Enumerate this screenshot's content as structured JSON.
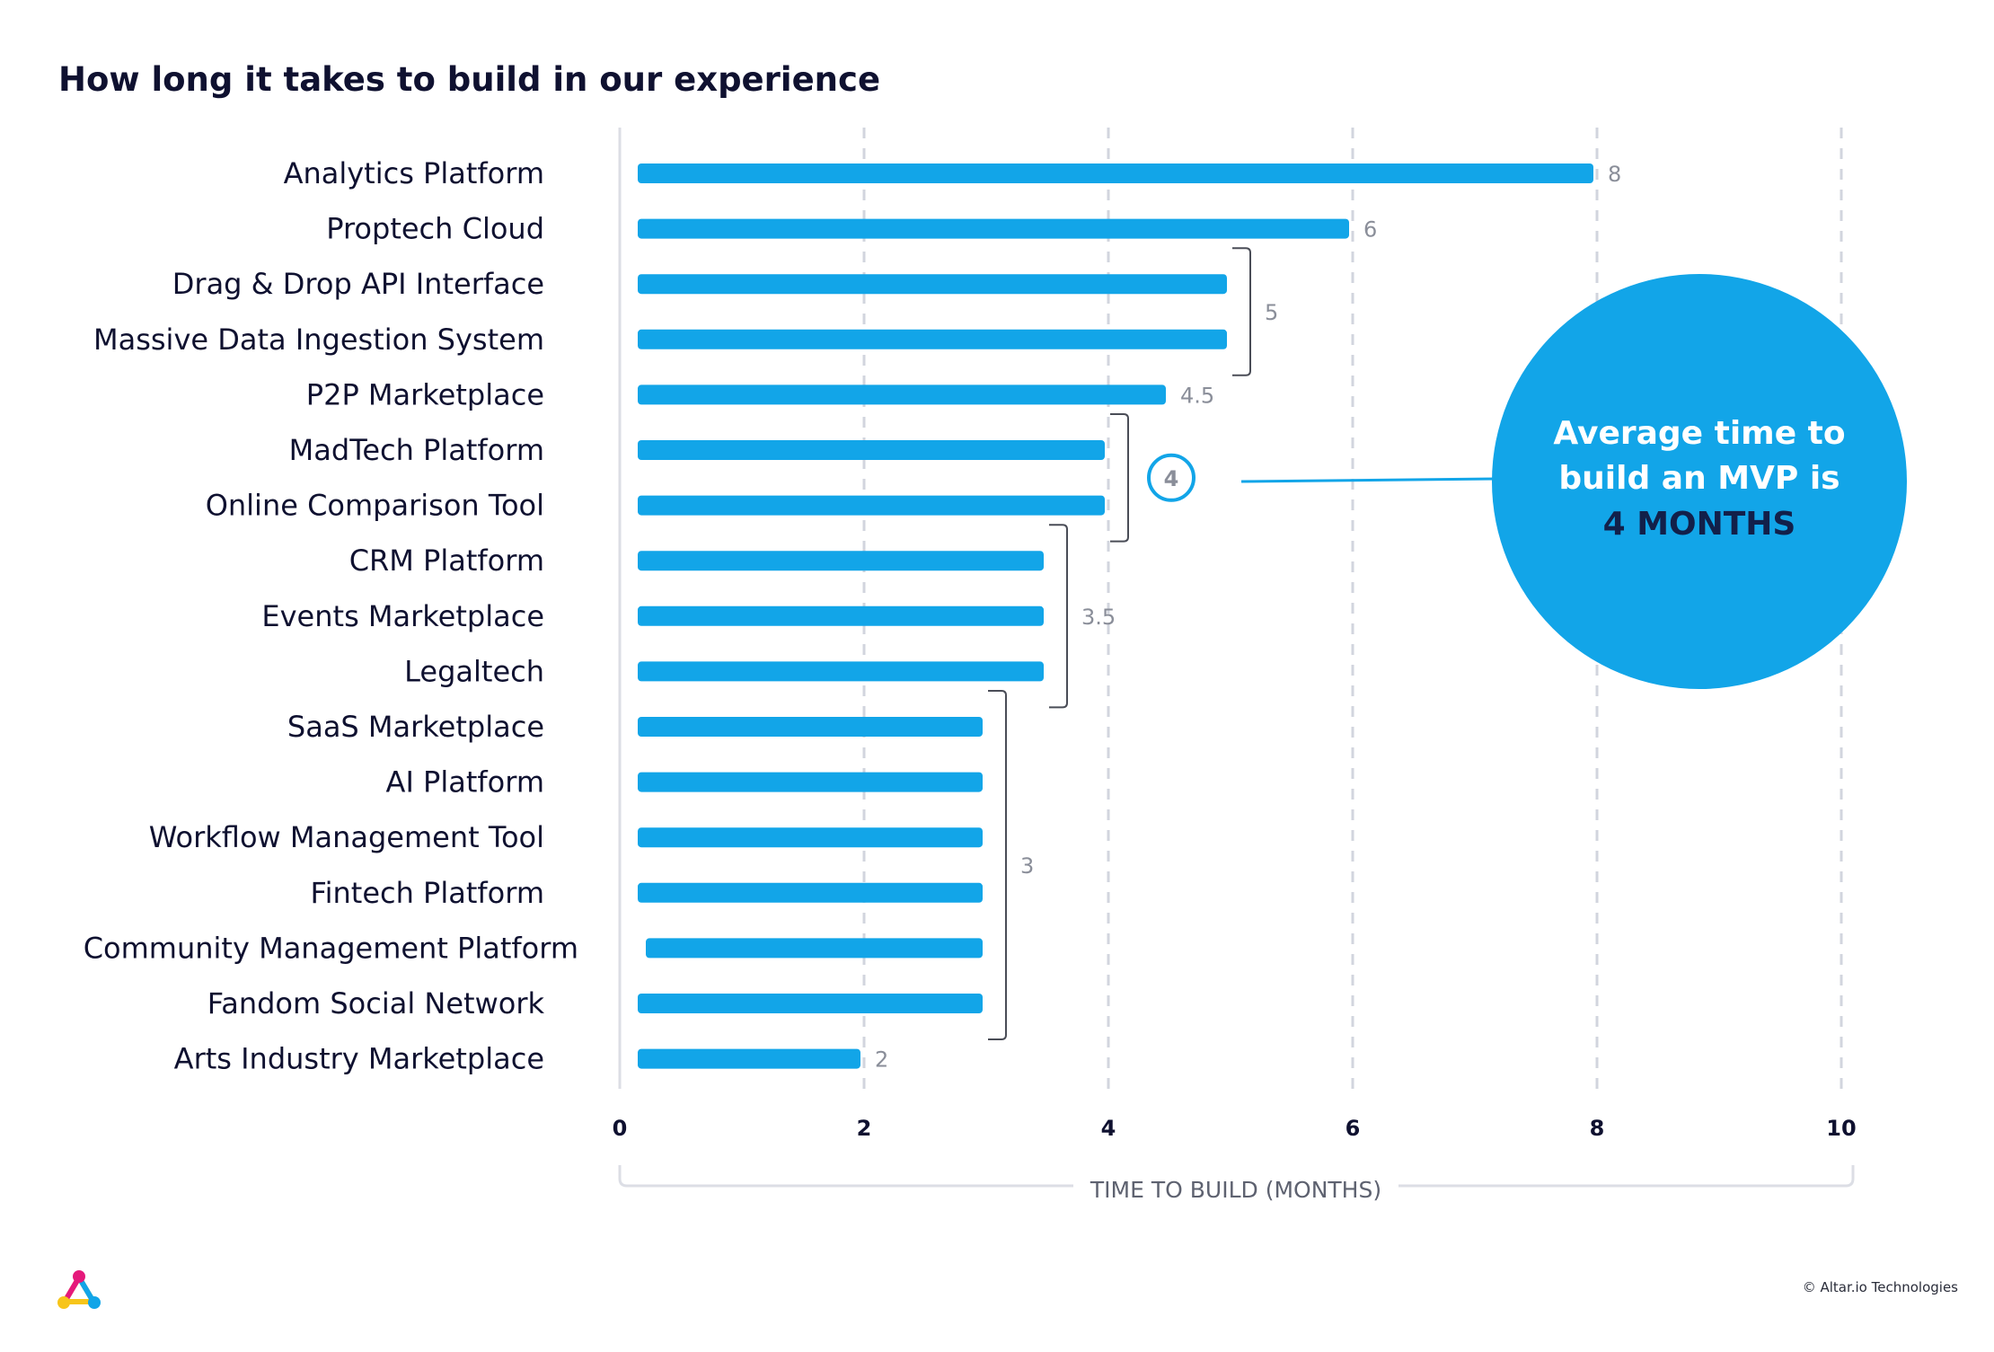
{
  "chart_data": {
    "type": "bar",
    "orientation": "horizontal",
    "title": "How long it takes to build in our experience",
    "xlabel": "TIME TO BUILD (MONTHS)",
    "ylabel": "",
    "xlim": [
      0,
      10
    ],
    "xticks": [
      "0",
      "2",
      "4",
      "6",
      "8",
      "10"
    ],
    "grid": "vertical-dashed",
    "bar_color": "#12a5e8",
    "categories": [
      "Analytics Platform",
      "Proptech Cloud",
      "Drag & Drop API Interface",
      "Massive Data Ingestion System",
      "P2P Marketplace",
      "MadTech Platform",
      "Online Comparison Tool",
      "CRM Platform",
      "Events Marketplace",
      "Legaltech",
      "SaaS Marketplace",
      "AI Platform",
      "Workflow Management Tool",
      "Fintech Platform",
      "Community Management Platform",
      "Fandom Social Network",
      "Arts Industry Marketplace"
    ],
    "values": [
      8,
      6,
      5,
      5,
      4.5,
      4,
      4,
      3.5,
      3.5,
      3.5,
      3,
      3,
      3,
      3,
      3,
      3,
      2
    ],
    "value_groups": [
      {
        "label": "8",
        "from": 0,
        "to": 0
      },
      {
        "label": "6",
        "from": 1,
        "to": 1
      },
      {
        "label": "5",
        "from": 2,
        "to": 3
      },
      {
        "label": "4.5",
        "from": 4,
        "to": 4
      },
      {
        "label": "4",
        "from": 5,
        "to": 6,
        "highlight": true
      },
      {
        "label": "3.5",
        "from": 7,
        "to": 9
      },
      {
        "label": "3",
        "from": 10,
        "to": 15
      },
      {
        "label": "2",
        "from": 16,
        "to": 16
      }
    ],
    "callout": {
      "line1": "Average time to",
      "line2": "build an MVP is",
      "line3": "4 MONTHS",
      "color": "#12a5e8"
    }
  },
  "footer": {
    "copyright": "© Altar.io Technologies"
  }
}
